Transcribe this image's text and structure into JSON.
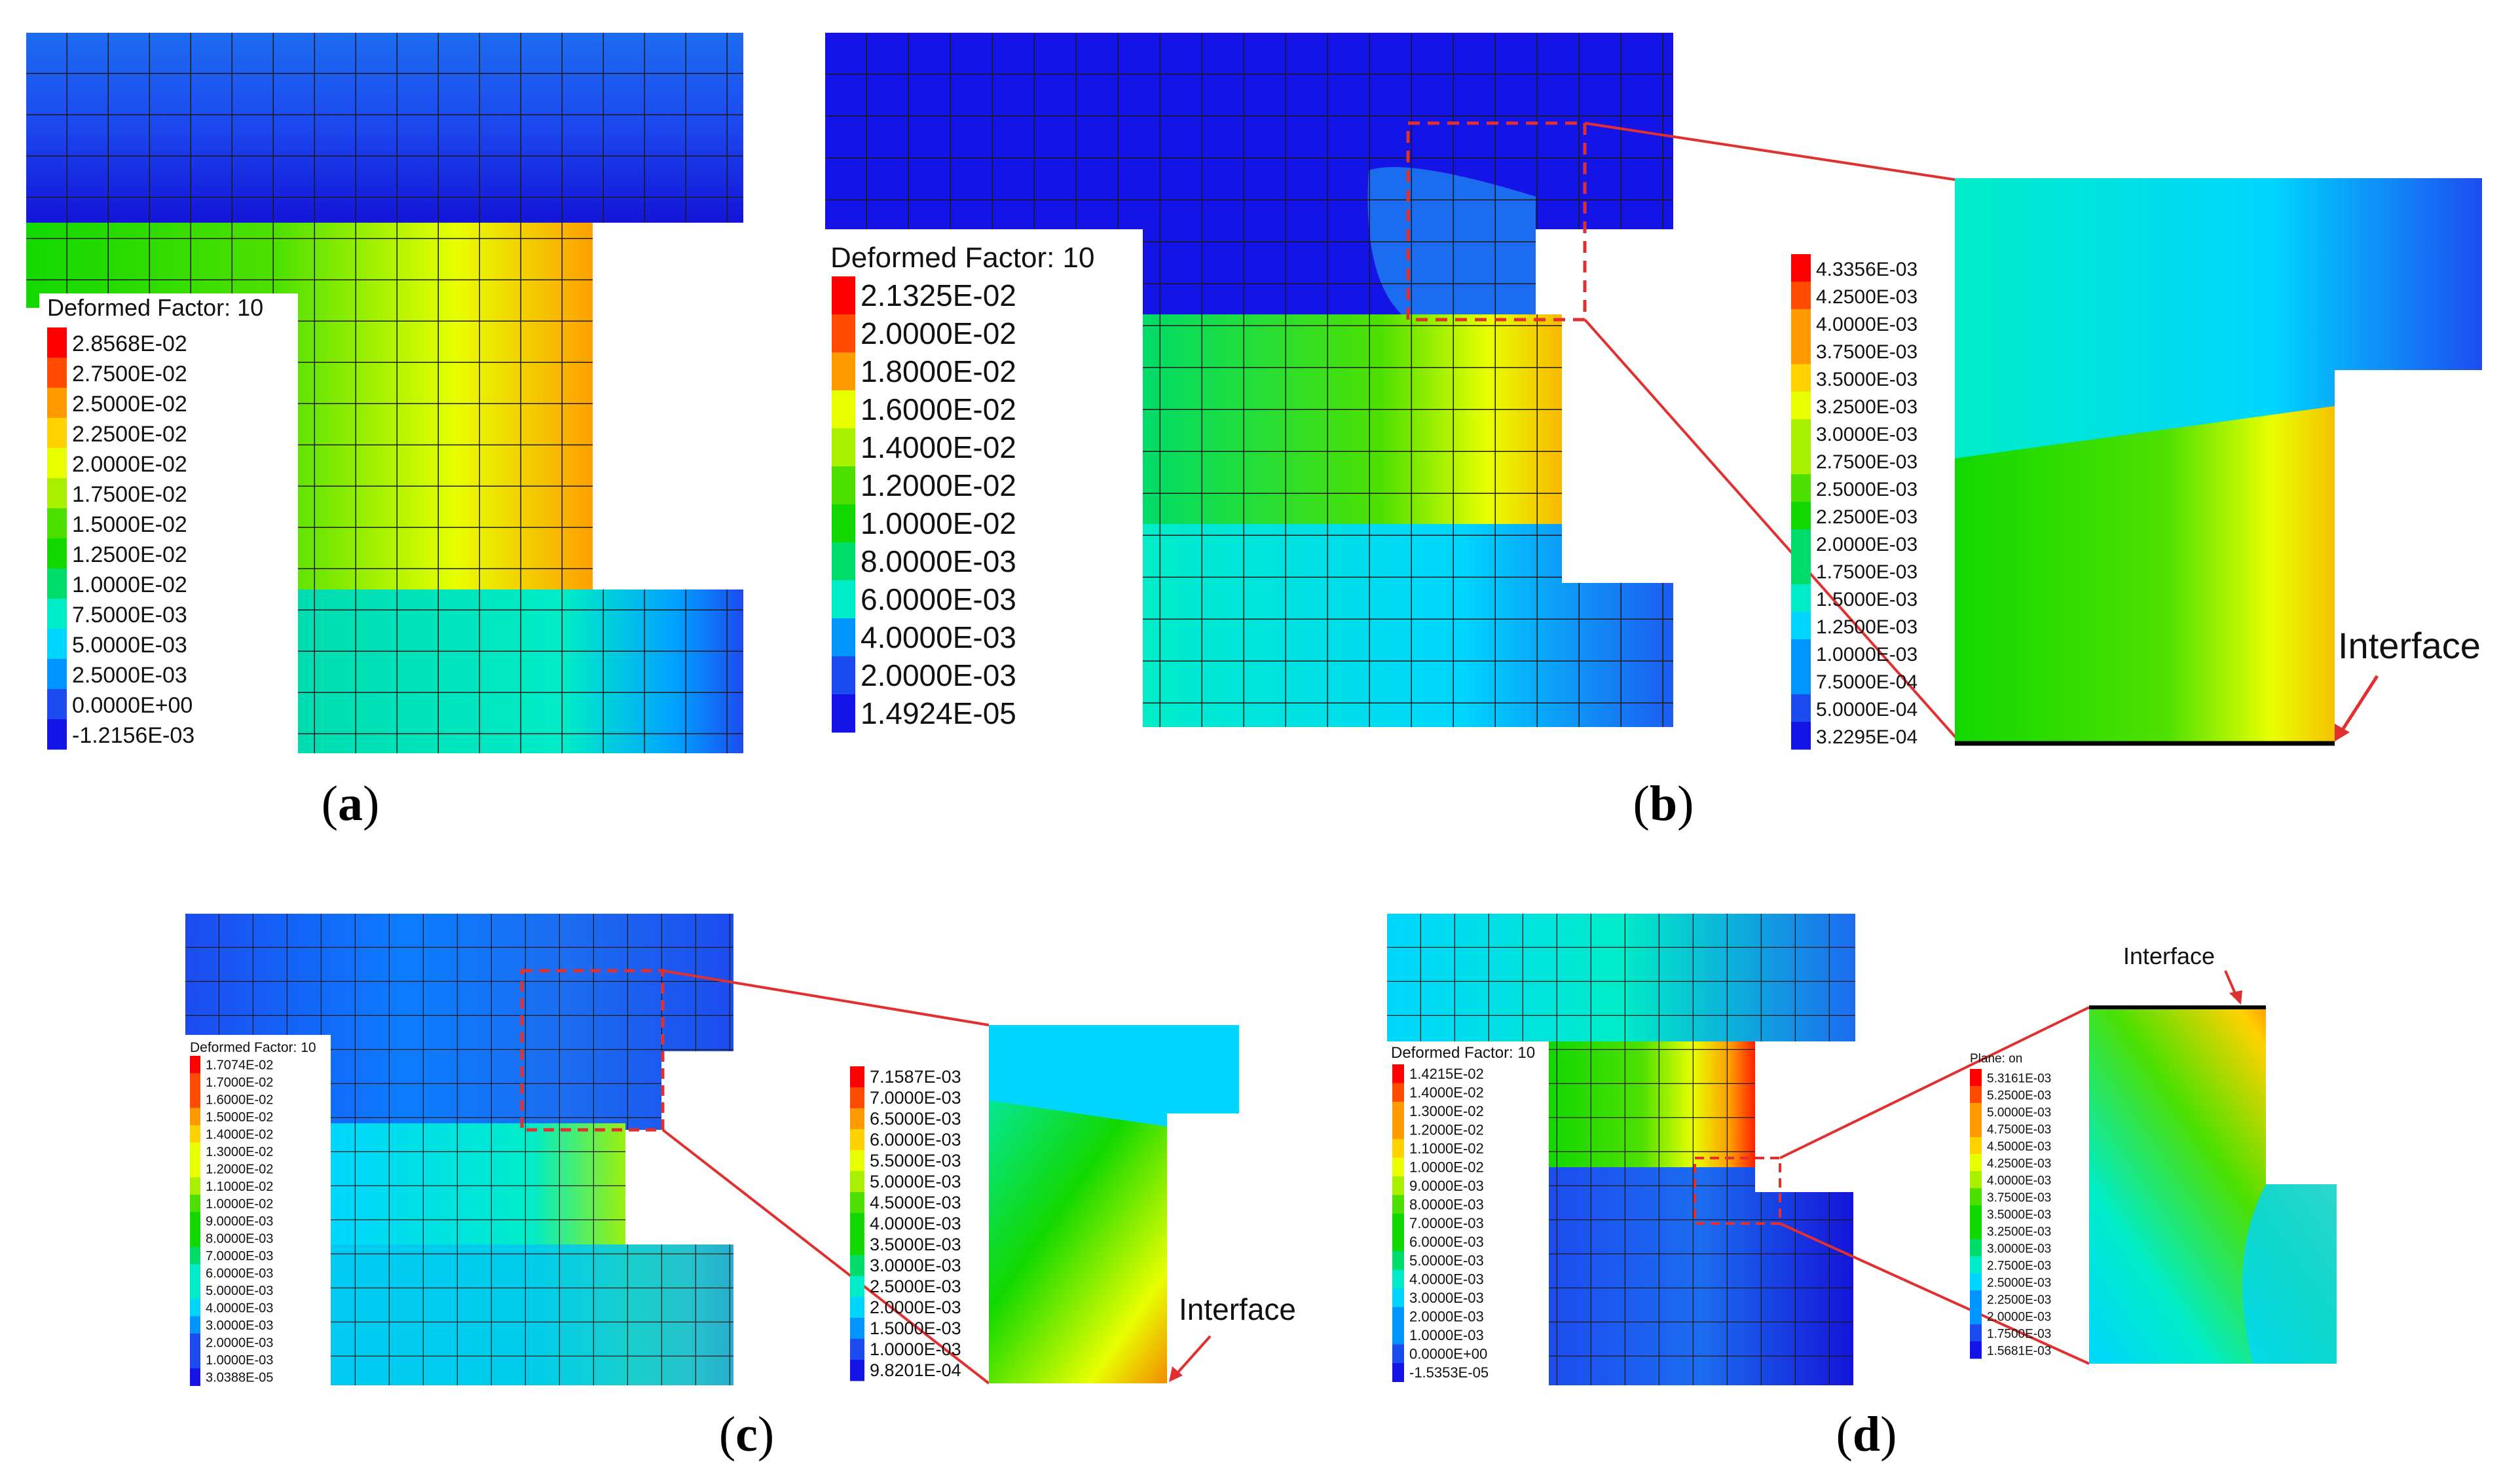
{
  "panels": [
    {
      "id": "a",
      "caption": "a",
      "legend_title": "Deformed Factor: 10",
      "legend_values": [
        "2.8568E-02",
        "2.7500E-02",
        "2.5000E-02",
        "2.2500E-02",
        "2.0000E-02",
        "1.7500E-02",
        "1.5000E-02",
        "1.2500E-02",
        "1.0000E-02",
        "7.5000E-03",
        "5.0000E-03",
        "2.5000E-03",
        "0.0000E+00",
        "-1.2156E-03"
      ],
      "zoom": null
    },
    {
      "id": "b",
      "caption": "b",
      "legend_title": "Deformed Factor: 10",
      "legend_values": [
        "2.1325E-02",
        "2.0000E-02",
        "1.8000E-02",
        "1.6000E-02",
        "1.4000E-02",
        "1.2000E-02",
        "1.0000E-02",
        "8.0000E-03",
        "6.0000E-03",
        "4.0000E-03",
        "2.0000E-03",
        "1.4924E-05"
      ],
      "zoom": {
        "legend_title": "",
        "legend_values": [
          "4.3356E-03",
          "4.2500E-03",
          "4.0000E-03",
          "3.7500E-03",
          "3.5000E-03",
          "3.2500E-03",
          "3.0000E-03",
          "2.7500E-03",
          "2.5000E-03",
          "2.2500E-03",
          "2.0000E-03",
          "1.7500E-03",
          "1.5000E-03",
          "1.2500E-03",
          "1.0000E-03",
          "7.5000E-04",
          "5.0000E-04",
          "3.2295E-04"
        ],
        "interface_label": "Interface"
      }
    },
    {
      "id": "c",
      "caption": "c",
      "legend_title": "Deformed Factor: 10",
      "legend_values": [
        "1.7074E-02",
        "1.7000E-02",
        "1.6000E-02",
        "1.5000E-02",
        "1.4000E-02",
        "1.3000E-02",
        "1.2000E-02",
        "1.1000E-02",
        "1.0000E-02",
        "9.0000E-03",
        "8.0000E-03",
        "7.0000E-03",
        "6.0000E-03",
        "5.0000E-03",
        "4.0000E-03",
        "3.0000E-03",
        "2.0000E-03",
        "1.0000E-03",
        "3.0388E-05"
      ],
      "zoom": {
        "legend_title": "",
        "legend_values": [
          "7.1587E-03",
          "7.0000E-03",
          "6.5000E-03",
          "6.0000E-03",
          "5.5000E-03",
          "5.0000E-03",
          "4.5000E-03",
          "4.0000E-03",
          "3.5000E-03",
          "3.0000E-03",
          "2.5000E-03",
          "2.0000E-03",
          "1.5000E-03",
          "1.0000E-03",
          "9.8201E-04"
        ],
        "interface_label": "Interface"
      }
    },
    {
      "id": "d",
      "caption": "d",
      "legend_title": "Deformed Factor: 10",
      "legend_values": [
        "1.4215E-02",
        "1.4000E-02",
        "1.3000E-02",
        "1.2000E-02",
        "1.1000E-02",
        "1.0000E-02",
        "9.0000E-03",
        "8.0000E-03",
        "7.0000E-03",
        "6.0000E-03",
        "5.0000E-03",
        "4.0000E-03",
        "3.0000E-03",
        "2.0000E-03",
        "1.0000E-03",
        "0.0000E+00",
        "-1.5353E-05"
      ],
      "zoom": {
        "legend_title": "Plane: on",
        "legend_values": [
          "5.3161E-03",
          "5.2500E-03",
          "5.0000E-03",
          "4.7500E-03",
          "4.5000E-03",
          "4.2500E-03",
          "4.0000E-03",
          "3.7500E-03",
          "3.5000E-03",
          "3.2500E-03",
          "3.0000E-03",
          "2.7500E-03",
          "2.5000E-03",
          "2.2500E-03",
          "2.0000E-03",
          "1.7500E-03",
          "1.5681E-03"
        ],
        "interface_label": "Interface"
      }
    }
  ],
  "colors": {
    "palette": [
      "#ff0000",
      "#ff4a00",
      "#ff9a00",
      "#ffd200",
      "#e8ff00",
      "#a8f000",
      "#4ee000",
      "#12d800",
      "#00dc6a",
      "#00ecc8",
      "#00d6ff",
      "#0094ff",
      "#1c4cf0",
      "#1414e6"
    ],
    "mesh_line": "#1a1a1a",
    "callout": "#e03030"
  }
}
